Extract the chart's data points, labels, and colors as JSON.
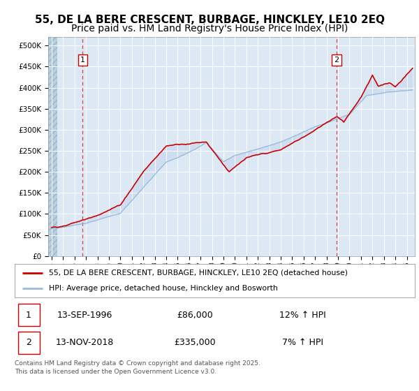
{
  "title": "55, DE LA BERE CRESCENT, BURBAGE, HINCKLEY, LE10 2EQ",
  "subtitle": "Price paid vs. HM Land Registry's House Price Index (HPI)",
  "ylabel_ticks": [
    "£0",
    "£50K",
    "£100K",
    "£150K",
    "£200K",
    "£250K",
    "£300K",
    "£350K",
    "£400K",
    "£450K",
    "£500K"
  ],
  "ytick_vals": [
    0,
    50000,
    100000,
    150000,
    200000,
    250000,
    300000,
    350000,
    400000,
    450000,
    500000
  ],
  "ylim": [
    0,
    520000
  ],
  "xlim_start": 1993.7,
  "xlim_end": 2025.7,
  "background_color": "#dce9f5",
  "grid_color": "#ffffff",
  "line_color_red": "#cc0000",
  "line_color_blue": "#99bbdd",
  "fill_color": "#c5d8ee",
  "marker1_date": 1996.71,
  "marker2_date": 2018.87,
  "sale1_price": 86000,
  "sale2_price": 335000,
  "legend_label1": "55, DE LA BERE CRESCENT, BURBAGE, HINCKLEY, LE10 2EQ (detached house)",
  "legend_label2": "HPI: Average price, detached house, Hinckley and Bosworth",
  "note1_label": "1",
  "note1_date": "13-SEP-1996",
  "note1_price": "£86,000",
  "note1_hpi": "12% ↑ HPI",
  "note2_label": "2",
  "note2_date": "13-NOV-2018",
  "note2_price": "£335,000",
  "note2_hpi": "7% ↑ HPI",
  "footer": "Contains HM Land Registry data © Crown copyright and database right 2025.\nThis data is licensed under the Open Government Licence v3.0.",
  "title_fontsize": 11,
  "subtitle_fontsize": 10
}
